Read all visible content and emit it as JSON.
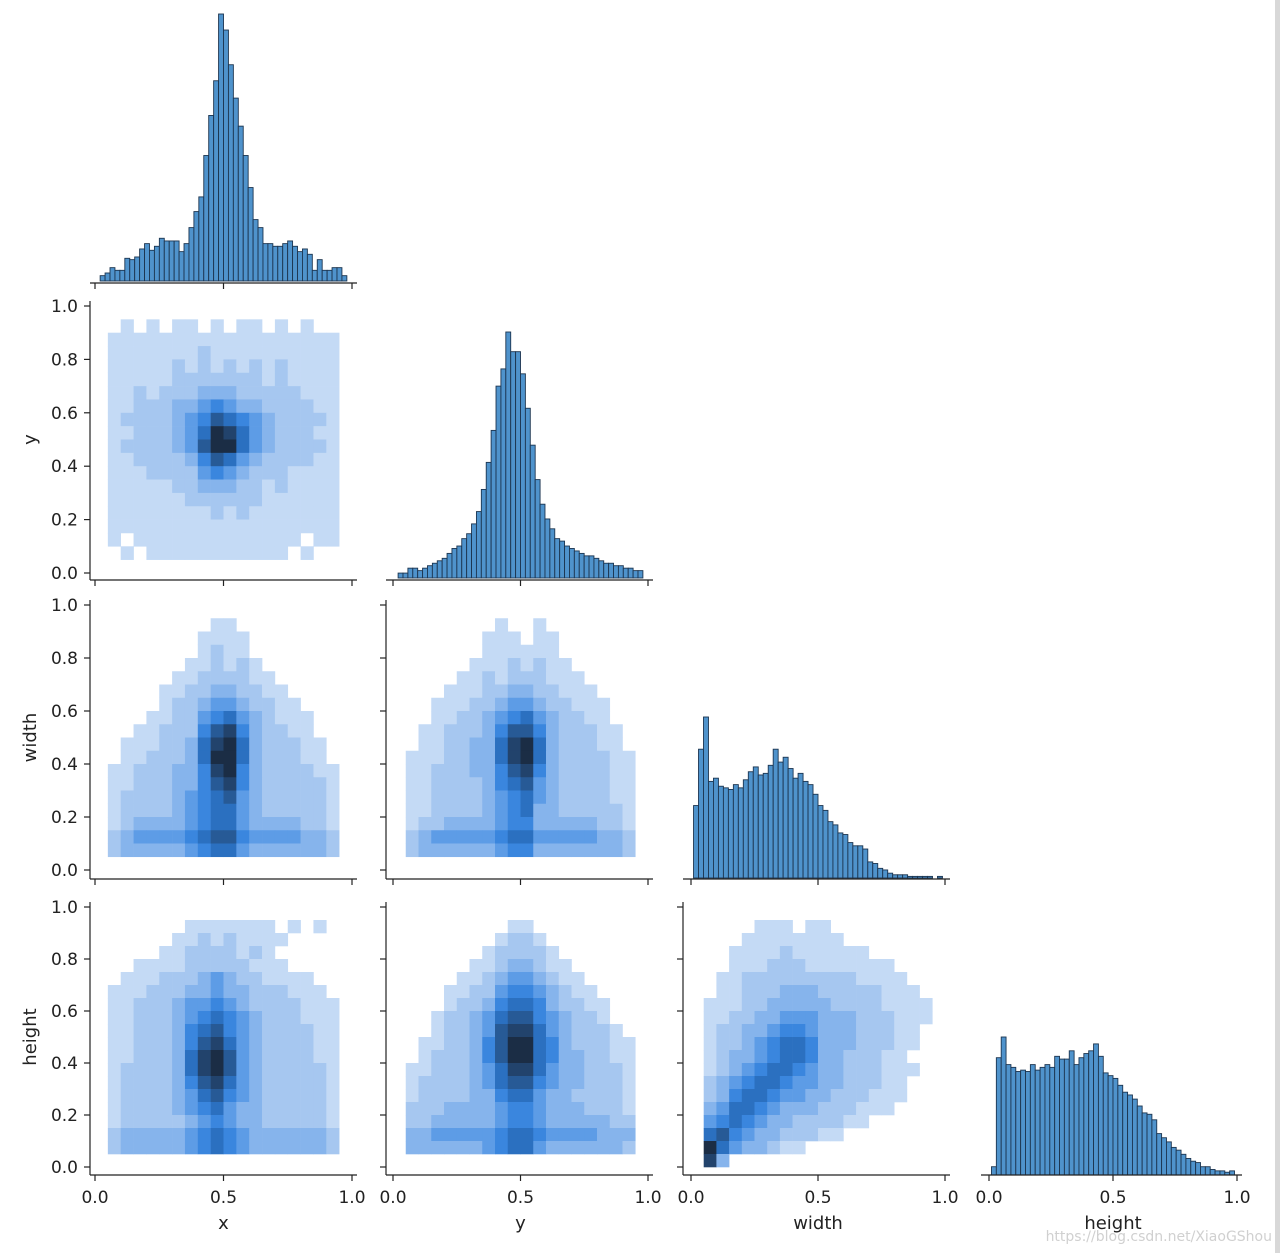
{
  "watermark": "https://blog.csdn.net/XiaoGShou",
  "chart_data": {
    "type": "pairplot",
    "layout": "corner",
    "variables": [
      "x",
      "y",
      "width",
      "height"
    ],
    "axis_labels": {
      "x": "x",
      "y": "y",
      "width": "width",
      "height": "height"
    },
    "ticks": [
      0.0,
      0.2,
      0.4,
      0.6,
      0.8,
      1.0
    ],
    "tick_labels_y": [
      "0.0",
      "0.2",
      "0.4",
      "0.6",
      "0.8",
      "1.0"
    ],
    "ticks_x": [
      0.0,
      0.5,
      1.0
    ],
    "tick_labels_x": [
      "0.0",
      "0.5",
      "1.0"
    ],
    "xlim": [
      0,
      1
    ],
    "ylim": [
      0,
      1
    ],
    "grid": false,
    "colors": {
      "hist_fill": "#4f93cc",
      "hist_edge": "#1c3550",
      "heat_levels": [
        "#c4daf5",
        "#a6c7f0",
        "#86b4ec",
        "#5d9ce6",
        "#3a86de",
        "#2b70c0",
        "#275a96",
        "#22436c",
        "#1b2d45"
      ]
    },
    "histograms": [
      {
        "var": "x",
        "bin_range": [
          0.02,
          0.98
        ],
        "relative_counts": [
          2,
          3,
          5,
          4,
          4,
          8.5,
          8,
          9,
          12,
          14,
          11.5,
          13,
          16,
          15,
          15,
          15,
          11,
          14,
          20,
          26,
          31.5,
          47,
          62,
          75,
          100,
          94,
          81,
          68.5,
          58,
          47,
          35,
          23,
          20,
          14,
          14,
          13,
          13,
          14,
          15,
          13,
          11,
          12,
          10,
          4,
          8,
          4,
          4,
          5,
          5,
          2
        ]
      },
      {
        "var": "y",
        "bin_range": [
          0.02,
          0.98
        ],
        "relative_counts": [
          2,
          2,
          4,
          4,
          3,
          4,
          5,
          6,
          7,
          8,
          10,
          12,
          13,
          16,
          18,
          22,
          27,
          36,
          47,
          60,
          78,
          85,
          100,
          92,
          92,
          83,
          69,
          54,
          40,
          30,
          24,
          20,
          16,
          15,
          13,
          12,
          11,
          10,
          9,
          9,
          8,
          7,
          6,
          6,
          5,
          5,
          4,
          4,
          3,
          3
        ]
      },
      {
        "var": "width",
        "bin_range": [
          0.01,
          0.99
        ],
        "relative_counts": [
          45,
          80,
          100,
          60,
          62,
          57,
          56,
          55,
          58,
          56,
          61,
          66,
          69,
          64,
          65,
          70,
          80,
          72,
          75,
          68,
          62,
          65,
          60,
          58,
          52,
          45,
          42,
          35,
          33,
          28,
          27,
          22,
          20,
          20,
          18,
          10,
          9,
          6,
          5,
          3,
          2,
          2,
          2,
          1,
          1,
          1,
          1,
          1,
          0,
          1
        ]
      },
      {
        "var": "height",
        "bin_range": [
          0.01,
          0.99
        ],
        "relative_counts": [
          6,
          85,
          100,
          80,
          78,
          75,
          76,
          75,
          80,
          76,
          78,
          80,
          78,
          86,
          84,
          84,
          90,
          80,
          85,
          88,
          90,
          95,
          86,
          74,
          72,
          70,
          65,
          60,
          58,
          55,
          50,
          45,
          44,
          40,
          30,
          27,
          24,
          20,
          18,
          15,
          12,
          10,
          9,
          6,
          6,
          4,
          3,
          3,
          2,
          3
        ]
      }
    ],
    "heatmaps": [
      {
        "x": "x",
        "y": "y",
        "density_rows_top_to_bottom": [
          "00000000000000000000",
          "00101011010110101000",
          "01111111111111111110",
          "01111111211111111110",
          "01111121212121211110",
          "01111122222221211110",
          "01121222333222221110",
          "01122233454332222110",
          "01222234576543222210",
          "01122234698643222110",
          "01222234799643222210",
          "01122223576432222110",
          "01112222454322211110",
          "01111122333221211110",
          "01111112222221111110",
          "01111111121211111110",
          "01111111111111111110",
          "01011111111111110110",
          "00101111111111101000",
          "00000000000000000000"
        ]
      },
      {
        "x": "x",
        "y": "width",
        "density_rows_top_to_bottom": [
          "00000000000000000000",
          "00000000011000000000",
          "00000000111100000000",
          "00000000121100000000",
          "00000001121210000000",
          "00000011222211000000",
          "00000112233221100000",
          "00000122344322110000",
          "00001122456432111000",
          "00011222578532211000",
          "00111223689632221100",
          "00112223699632221100",
          "01122233589532222110",
          "01122233578532222210",
          "01222234567432222210",
          "01222234566432222210",
          "01233334566433332210",
          "02344445677544443320",
          "02333334566433333320",
          "00000000000000000000"
        ]
      },
      {
        "x": "y",
        "y": "width",
        "density_rows_top_to_bottom": [
          "00000000000000000000",
          "00000000100100000000",
          "00000001110110000000",
          "00000001111110000000",
          "00000011121211000000",
          "00000112122211100000",
          "00001112233221110000",
          "00011122344322111000",
          "00011223456432211000",
          "00112223577532221100",
          "00112233689632221100",
          "01112233689632222110",
          "01122233578532222110",
          "01122223567432222110",
          "01122223456432222110",
          "01122223456332222210",
          "01223333455333332210",
          "02344444566444443320",
          "02333333455333333320",
          "00000000000000000000"
        ]
      },
      {
        "x": "x",
        "y": "height",
        "density_rows_top_to_bottom": [
          "00000000000000000000",
          "00000001111111010100",
          "00000011212111100000",
          "00000112222121000000",
          "00011112222211100000",
          "00111222343221111000",
          "01112223343322211100",
          "01122234454322221110",
          "01122234565432221110",
          "01122235675432222110",
          "01122235786432222110",
          "01122236897432222110",
          "01222236897432222210",
          "01222235786432222210",
          "01222234675432222210",
          "01222234564332222210",
          "01222223454332222210",
          "02333334565433333320",
          "02333334565433333320",
          "00000000000000000000"
        ]
      },
      {
        "x": "y",
        "y": "height",
        "density_rows_top_to_bottom": [
          "00000000000000000000",
          "00000000011000000000",
          "00000000122100000000",
          "00000001222210000000",
          "00000011233211000000",
          "00000112344321100000",
          "00001122455432110000",
          "00001223566532211000",
          "00012234677543221000",
          "00012234788643222100",
          "00112235799653222110",
          "00122235799653322110",
          "01122234688643322210",
          "01222234677543322210",
          "01222233566433222210",
          "02223333455433322210",
          "02233333455433333220",
          "03344444566544443330",
          "03333334566433333320",
          "00000000000000000000"
        ]
      },
      {
        "x": "width",
        "y": "height",
        "density_rows_top_to_bottom": [
          "00000000000000000000",
          "00000111011000000000",
          "00001111111100000000",
          "00011112111111000000",
          "00011122211111110000",
          "00112222222221111000",
          "00112223332222211100",
          "01112233333222211110",
          "01122334443332221110",
          "01223345543332221100",
          "01223456653332221100",
          "01233456653322211000",
          "01234566543322211100",
          "02345665443322211000",
          "02356654433222111000",
          "03466543332221110000",
          "04565433222211000000",
          "06754332221100000000",
          "09643321100000000000",
          "08300000000000000000"
        ]
      }
    ]
  }
}
